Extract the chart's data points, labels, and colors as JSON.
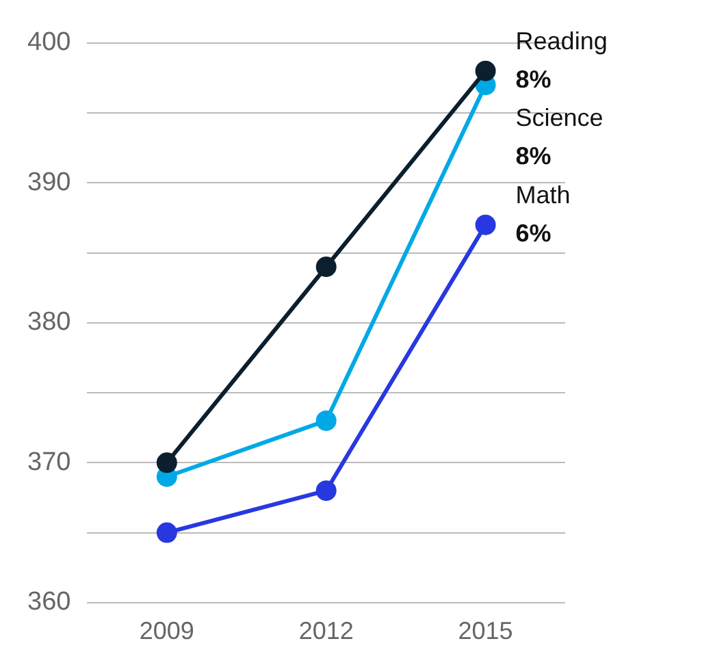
{
  "chart_data": {
    "type": "line",
    "categories": [
      "2009",
      "2012",
      "2015"
    ],
    "series": [
      {
        "name": "Reading",
        "color": "#0b1f2e",
        "values": [
          370,
          384,
          398
        ]
      },
      {
        "name": "Science",
        "color": "#00a9e6",
        "values": [
          369,
          373,
          397
        ]
      },
      {
        "name": "Math",
        "color": "#2838e0",
        "values": [
          365,
          368,
          387
        ]
      }
    ],
    "annotations": [
      {
        "text": "8%",
        "x": "2015",
        "y": 398
      },
      {
        "text": "8%",
        "x": "2015",
        "y": 397
      },
      {
        "text": "6%",
        "x": "2015",
        "y": 387
      }
    ],
    "ylim": [
      360,
      400
    ],
    "yticks": [
      360,
      {
        "value": 365,
        "label": null
      },
      370,
      {
        "value": 375,
        "label": null
      },
      380,
      {
        "value": 385,
        "label": null
      },
      390,
      {
        "value": 395,
        "label": null
      },
      400
    ],
    "grid": "y",
    "marker": "circle",
    "line_style": "solid",
    "legend": false
  }
}
